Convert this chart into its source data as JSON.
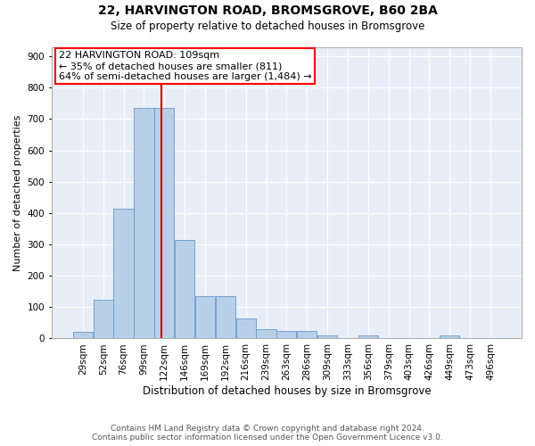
{
  "title1": "22, HARVINGTON ROAD, BROMSGROVE, B60 2BA",
  "title2": "Size of property relative to detached houses in Bromsgrove",
  "xlabel": "Distribution of detached houses by size in Bromsgrove",
  "ylabel": "Number of detached properties",
  "footer1": "Contains HM Land Registry data © Crown copyright and database right 2024.",
  "footer2": "Contains public sector information licensed under the Open Government Licence v3.0.",
  "annotation_line1": "22 HARVINGTON ROAD: 109sqm",
  "annotation_line2": "← 35% of detached houses are smaller (811)",
  "annotation_line3": "64% of semi-detached houses are larger (1,484) →",
  "bar_color": "#b8cfe8",
  "bar_edge_color": "#6699cc",
  "vline_color": "#cc0000",
  "bg_color": "#e8eef8",
  "categories": [
    "29sqm",
    "52sqm",
    "76sqm",
    "99sqm",
    "122sqm",
    "146sqm",
    "169sqm",
    "192sqm",
    "216sqm",
    "239sqm",
    "263sqm",
    "286sqm",
    "309sqm",
    "333sqm",
    "356sqm",
    "379sqm",
    "403sqm",
    "426sqm",
    "449sqm",
    "473sqm",
    "496sqm"
  ],
  "values": [
    20,
    125,
    415,
    735,
    735,
    315,
    135,
    135,
    65,
    30,
    25,
    25,
    10,
    0,
    10,
    0,
    0,
    0,
    10,
    0,
    0
  ],
  "vline_index": 3.85,
  "ylim": [
    0,
    930
  ],
  "yticks": [
    0,
    100,
    200,
    300,
    400,
    500,
    600,
    700,
    800,
    900
  ]
}
